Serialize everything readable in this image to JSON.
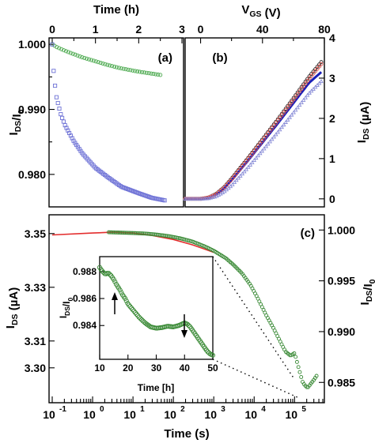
{
  "chart_data": [
    {
      "panel": "(a)",
      "type": "scatter",
      "xlabel": "Time (h)",
      "ylabel": "I_DS/I_0",
      "xlim": [
        0,
        3
      ],
      "ylim": [
        0.975,
        1.001
      ],
      "xticks": [
        "0",
        "1",
        "2",
        "3"
      ],
      "yticks": [
        "0.980",
        "0.990",
        "1.000"
      ],
      "series": [
        {
          "color": "#4daa50",
          "marker": "circle",
          "x": [
            0.0,
            0.1,
            0.2,
            0.3,
            0.5,
            0.7,
            1.0,
            1.3,
            1.6,
            2.0,
            2.3,
            2.5
          ],
          "y": [
            1.0,
            0.9996,
            0.9993,
            0.999,
            0.9985,
            0.998,
            0.9974,
            0.9968,
            0.9963,
            0.9958,
            0.9955,
            0.9953
          ]
        },
        {
          "color": "#6e72d6",
          "marker": "square",
          "x": [
            0.0,
            0.02,
            0.05,
            0.1,
            0.2,
            0.3,
            0.5,
            0.7,
            1.0,
            1.3,
            1.6,
            2.0,
            2.3,
            2.6
          ],
          "y": [
            1.0,
            0.997,
            0.9945,
            0.9918,
            0.9892,
            0.9875,
            0.9851,
            0.9832,
            0.981,
            0.9795,
            0.9781,
            0.9771,
            0.9764,
            0.976
          ]
        }
      ]
    },
    {
      "panel": "(b)",
      "type": "scatter",
      "xlabel": "V_GS (V)",
      "ylabel": "I_DS (µA)",
      "xlim": [
        -10,
        80
      ],
      "ylim": [
        -0.2,
        4
      ],
      "xticks": [
        "0",
        "40",
        "80"
      ],
      "yticks": [
        "0",
        "1",
        "2",
        "3",
        "4"
      ],
      "series": [
        {
          "color": "#222222",
          "marker": "circle",
          "x": [
            -10,
            0,
            5,
            10,
            15,
            20,
            30,
            40,
            50,
            60,
            70,
            78
          ],
          "y": [
            0,
            0,
            0.03,
            0.12,
            0.28,
            0.5,
            0.98,
            1.48,
            1.98,
            2.5,
            3.03,
            3.4
          ]
        },
        {
          "color": "#1a1fb8",
          "marker": "line",
          "x": [
            -10,
            0,
            5,
            10,
            15,
            20,
            30,
            40,
            50,
            60,
            70,
            78
          ],
          "y": [
            0,
            0,
            0.02,
            0.1,
            0.25,
            0.46,
            0.92,
            1.4,
            1.88,
            2.38,
            2.88,
            3.15
          ]
        },
        {
          "color": "#d9534f",
          "marker": "circle",
          "x": [
            -10,
            0,
            5,
            10,
            15,
            20,
            30,
            40,
            50,
            60,
            70,
            78
          ],
          "y": [
            0,
            0,
            0.03,
            0.11,
            0.27,
            0.48,
            0.96,
            1.45,
            1.95,
            2.46,
            2.98,
            3.35
          ]
        },
        {
          "color": "#8a8ed8",
          "marker": "triangle",
          "x": [
            -10,
            0,
            5,
            10,
            15,
            20,
            30,
            40,
            50,
            60,
            70,
            78
          ],
          "y": [
            0,
            0,
            0.01,
            0.06,
            0.17,
            0.33,
            0.75,
            1.2,
            1.66,
            2.14,
            2.62,
            2.92
          ]
        }
      ]
    },
    {
      "panel": "(c)",
      "type": "scatter",
      "xlabel": "Time (s)",
      "ylabel_left": "I_DS (µA)",
      "ylabel_right": "I_DS/I_0",
      "xscale": "log",
      "xlim": [
        0.1,
        500000
      ],
      "ylim_left": [
        3.287,
        3.357
      ],
      "ylim_right": [
        0.983,
        1.0015
      ],
      "xticks": [
        "10",
        "10",
        "10",
        "10",
        "10",
        "10",
        "10"
      ],
      "xtick_exponents": [
        "-1",
        "0",
        "1",
        "2",
        "3",
        "4",
        "5"
      ],
      "yticks_left": [
        "3.30",
        "3.31",
        "3.33",
        "3.35"
      ],
      "yticks_right": [
        "0.985",
        "0.990",
        "0.995",
        "1.000"
      ],
      "fit": {
        "color": "#e32d2d",
        "x": [
          0.1,
          1,
          3,
          10,
          30,
          100,
          300,
          1000
        ],
        "y": [
          3.3495,
          3.3502,
          3.3505,
          3.3502,
          3.3493,
          3.3478,
          3.3458,
          3.343
        ]
      },
      "series": [
        {
          "color": "#3a8a36",
          "marker": "circle",
          "x": [
            2.5,
            10,
            20,
            40,
            80,
            150,
            300,
            600,
            1000,
            2000,
            3000,
            5000,
            8000,
            12000,
            20000,
            30000,
            50000,
            60000,
            80000,
            100000,
            140000,
            160000,
            180000,
            210000,
            250000,
            300000,
            350000
          ],
          "y": [
            3.3505,
            3.3502,
            3.35,
            3.3496,
            3.349,
            3.3482,
            3.347,
            3.3452,
            3.3436,
            3.3408,
            3.3385,
            3.3352,
            3.331,
            3.3262,
            3.3195,
            3.3148,
            3.3082,
            3.306,
            3.3045,
            3.3055,
            3.2975,
            3.2945,
            3.2935,
            3.2925,
            3.294,
            3.2955,
            3.297
          ]
        }
      ]
    },
    {
      "panel": "inset",
      "type": "scatter",
      "xlabel": "Time [h]",
      "ylabel": "I_DS/I_0",
      "xlim": [
        10,
        50
      ],
      "ylim": [
        0.9815,
        0.9891
      ],
      "xticks": [
        "10",
        "20",
        "30",
        "40",
        "50"
      ],
      "yticks": [
        "0.984",
        "0.986",
        "0.988"
      ],
      "series": [
        {
          "color": "#3a8a36",
          "marker": "circle",
          "x": [
            10,
            11,
            12,
            13,
            14,
            15,
            16,
            17,
            18,
            19,
            20,
            22,
            24,
            26,
            28,
            30,
            32,
            34,
            36,
            38,
            39,
            40,
            41,
            42,
            43,
            44,
            45,
            46,
            47,
            48,
            49,
            50
          ],
          "y": [
            0.9883,
            0.988,
            0.9878,
            0.9879,
            0.9877,
            0.9874,
            0.987,
            0.9867,
            0.9863,
            0.986,
            0.9856,
            0.9851,
            0.9846,
            0.9842,
            0.9839,
            0.9838,
            0.98385,
            0.98395,
            0.9839,
            0.984,
            0.9841,
            0.9842,
            0.9841,
            0.9839,
            0.9836,
            0.9833,
            0.983,
            0.9827,
            0.9824,
            0.9821,
            0.9819,
            0.9818
          ]
        }
      ]
    }
  ]
}
